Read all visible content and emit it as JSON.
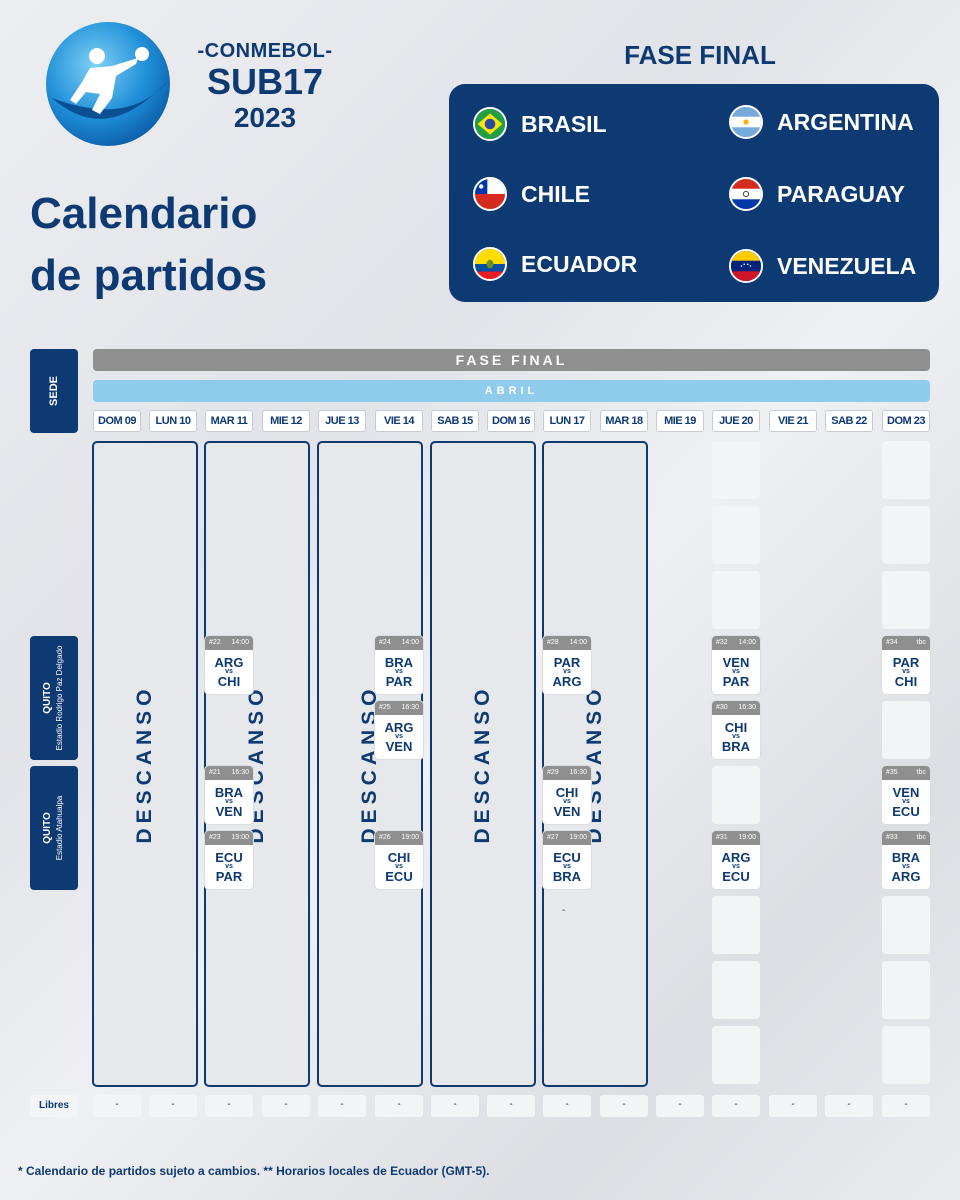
{
  "brand": {
    "org": "-CONMEBOL-",
    "category": "SUB17",
    "year": "2023"
  },
  "title": {
    "line1": "Calendario",
    "line2": "de partidos"
  },
  "stage_header": "FASE FINAL",
  "teams": [
    {
      "name": "BRASIL",
      "flag": "brazil-flag-icon"
    },
    {
      "name": "ARGENTINA",
      "flag": "argentina-flag-icon"
    },
    {
      "name": "CHILE",
      "flag": "chile-flag-icon"
    },
    {
      "name": "PARAGUAY",
      "flag": "paraguay-flag-icon"
    },
    {
      "name": "ECUADOR",
      "flag": "ecuador-flag-icon"
    },
    {
      "name": "VENEZUELA",
      "flag": "venezuela-flag-icon"
    }
  ],
  "schedule": {
    "sede_label": "SEDE",
    "stage_bar": "FASE FINAL",
    "month_bar": "ABRIL",
    "days": [
      "DOM 09",
      "LUN 10",
      "MAR 11",
      "MIE 12",
      "JUE 13",
      "VIE 14",
      "SAB 15",
      "DOM 16",
      "LUN 17",
      "MAR 18",
      "MIE 19",
      "JUE 20",
      "VIE 21",
      "SAB 22",
      "DOM 23"
    ],
    "rest_label": "DESCANSO",
    "venues": [
      {
        "city": "QUITO",
        "stadium": "Estadio Rodrigo Paz Delgado"
      },
      {
        "city": "QUITO",
        "stadium": "Estadio Atahualpa"
      }
    ],
    "vs": "vs",
    "matches": [
      {
        "num": "#22",
        "time": "14:00",
        "home": "ARG",
        "away": "CHI"
      },
      {
        "num": "#21",
        "time": "16:30",
        "home": "BRA",
        "away": "VEN"
      },
      {
        "num": "#23",
        "time": "19:00",
        "home": "ECU",
        "away": "PAR"
      },
      {
        "num": "#24",
        "time": "14:00",
        "home": "BRA",
        "away": "PAR"
      },
      {
        "num": "#25",
        "time": "16:30",
        "home": "ARG",
        "away": "VEN"
      },
      {
        "num": "#26",
        "time": "19:00",
        "home": "CHI",
        "away": "ECU"
      },
      {
        "num": "#28",
        "time": "14:00",
        "home": "PAR",
        "away": "ARG"
      },
      {
        "num": "#29",
        "time": "16:30",
        "home": "CHI",
        "away": "VEN"
      },
      {
        "num": "#27",
        "time": "19:00",
        "home": "ECU",
        "away": "BRA"
      },
      {
        "num": "#32",
        "time": "14:00",
        "home": "VEN",
        "away": "PAR"
      },
      {
        "num": "#30",
        "time": "16:30",
        "home": "CHI",
        "away": "BRA"
      },
      {
        "num": "#31",
        "time": "19:00",
        "home": "ARG",
        "away": "ECU"
      },
      {
        "num": "#34",
        "time": "tbc",
        "home": "PAR",
        "away": "CHI"
      },
      {
        "num": "#35",
        "time": "tbc",
        "home": "VEN",
        "away": "ECU"
      },
      {
        "num": "#33",
        "time": "tbc",
        "home": "BRA",
        "away": "ARG"
      }
    ],
    "extra_dash": "-",
    "libres_label": "Libres",
    "libres": [
      "-",
      "-",
      "-",
      "-",
      "-",
      "-",
      "-",
      "-",
      "-",
      "-",
      "-",
      "-",
      "-",
      "-",
      "-"
    ]
  },
  "footnote": "* Calendario de partidos sujeto a cambios. ** Horarios locales de Ecuador (GMT-5)."
}
